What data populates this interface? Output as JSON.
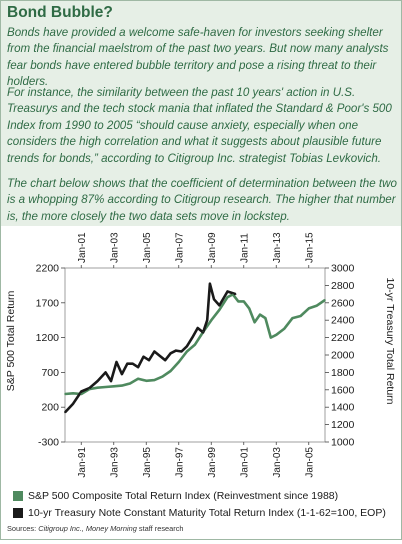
{
  "title": "Bond Bubble?",
  "paragraphs": [
    "Bonds have provided a welcome safe-haven for investors seeking shelter from the financial maelstrom of the past two years. But now many analysts fear bonds have entered bubble territory and pose a rising threat to their holders.",
    "For instance, the similarity between the past 10 years' action in U.S. Treasurys and the tech stock mania that inflated the Standard & Poor's 500 Index from 1990 to 2005 “should cause anxiety, especially when one considers the high correlation and what it suggests about plausible future trends for bonds,” according to Citigroup Inc. strategist Tobias Levkovich.",
    "The chart below shows that the coefficient of determination between the two is a whopping 87% according to Citigroup research. The higher that number is, the more closely the two data sets move in lockstep."
  ],
  "colors": {
    "accent": "#2f6b45",
    "background": "#e6efe6",
    "sp500_series": "#4f8a5f",
    "treasury_series": "#1a1a1a"
  },
  "chart_data": {
    "type": "line",
    "top_x_labels": [
      "Jan-01",
      "Jan-03",
      "Jan-05",
      "Jan-07",
      "Jan-09",
      "Jan-11",
      "Jan-13",
      "Jan-15"
    ],
    "bottom_x_labels": [
      "Jan-91",
      "Jan-93",
      "Jan-95",
      "Jan-97",
      "Jan-99",
      "Jan-01",
      "Jan-03",
      "Jan-05"
    ],
    "left_axis": {
      "label": "S&P 500 Total Return",
      "ticks": [
        -300,
        200,
        700,
        1200,
        1700,
        2200
      ],
      "range": [
        -300,
        2200
      ]
    },
    "right_axis": {
      "label": "10-yr Treasury Total Return",
      "ticks": [
        1000,
        1200,
        1400,
        1600,
        1800,
        2000,
        2200,
        2400,
        2600,
        2800,
        3000
      ],
      "range": [
        1000,
        3000
      ]
    },
    "series": [
      {
        "name": "S&P 500 Composite Total Return Index (Reinvestment since 1988)",
        "axis": "left",
        "points": [
          [
            "1990-01",
            390
          ],
          [
            "1990-07",
            400
          ],
          [
            "1991-01",
            390
          ],
          [
            "1991-07",
            460
          ],
          [
            "1992-01",
            480
          ],
          [
            "1992-07",
            490
          ],
          [
            "1993-01",
            500
          ],
          [
            "1993-07",
            510
          ],
          [
            "1994-01",
            540
          ],
          [
            "1994-07",
            610
          ],
          [
            "1995-01",
            580
          ],
          [
            "1995-07",
            590
          ],
          [
            "1996-01",
            640
          ],
          [
            "1996-07",
            720
          ],
          [
            "1997-01",
            850
          ],
          [
            "1997-07",
            1000
          ],
          [
            "1998-01",
            1100
          ],
          [
            "1998-07",
            1280
          ],
          [
            "1999-01",
            1450
          ],
          [
            "1999-07",
            1600
          ],
          [
            "2000-01",
            1780
          ],
          [
            "2000-05",
            1820
          ],
          [
            "2000-09",
            1720
          ],
          [
            "2001-01",
            1720
          ],
          [
            "2001-05",
            1620
          ],
          [
            "2001-09",
            1420
          ],
          [
            "2002-01",
            1530
          ],
          [
            "2002-05",
            1480
          ],
          [
            "2002-09",
            1200
          ],
          [
            "2003-01",
            1240
          ],
          [
            "2003-07",
            1330
          ],
          [
            "2004-01",
            1480
          ],
          [
            "2004-07",
            1510
          ],
          [
            "2005-01",
            1620
          ],
          [
            "2005-07",
            1660
          ],
          [
            "2006-01",
            1740
          ]
        ]
      },
      {
        "name": "10-yr Treasury Note Constant Maturity Total Return Index (1-1-62=100, EOP)",
        "axis": "right",
        "points": [
          [
            "2000-01",
            1340
          ],
          [
            "2000-07",
            1440
          ],
          [
            "2001-01",
            1580
          ],
          [
            "2001-07",
            1620
          ],
          [
            "2002-01",
            1700
          ],
          [
            "2002-07",
            1800
          ],
          [
            "2002-11",
            1700
          ],
          [
            "2003-03",
            1920
          ],
          [
            "2003-07",
            1780
          ],
          [
            "2003-11",
            1900
          ],
          [
            "2004-03",
            1900
          ],
          [
            "2004-07",
            1860
          ],
          [
            "2004-11",
            1980
          ],
          [
            "2005-03",
            1940
          ],
          [
            "2005-07",
            2040
          ],
          [
            "2005-11",
            1990
          ],
          [
            "2006-03",
            1940
          ],
          [
            "2006-07",
            2020
          ],
          [
            "2006-11",
            2050
          ],
          [
            "2007-03",
            2040
          ],
          [
            "2007-07",
            2100
          ],
          [
            "2007-11",
            2200
          ],
          [
            "2008-03",
            2310
          ],
          [
            "2008-07",
            2260
          ],
          [
            "2008-10",
            2400
          ],
          [
            "2008-12",
            2820
          ],
          [
            "2009-03",
            2640
          ],
          [
            "2009-07",
            2570
          ],
          [
            "2010-01",
            2730
          ],
          [
            "2010-07",
            2700
          ]
        ]
      }
    ]
  },
  "legend": [
    {
      "label": "S&P 500 Composite Total Return Index (Reinvestment since 1988)"
    },
    {
      "label": "10-yr Treasury Note Constant Maturity Total Return Index (1-1-62=100, EOP)"
    }
  ],
  "source": {
    "prefix": "Sources: ",
    "italic": "Citigroup Inc., Money Morning",
    "suffix": " staff research"
  }
}
